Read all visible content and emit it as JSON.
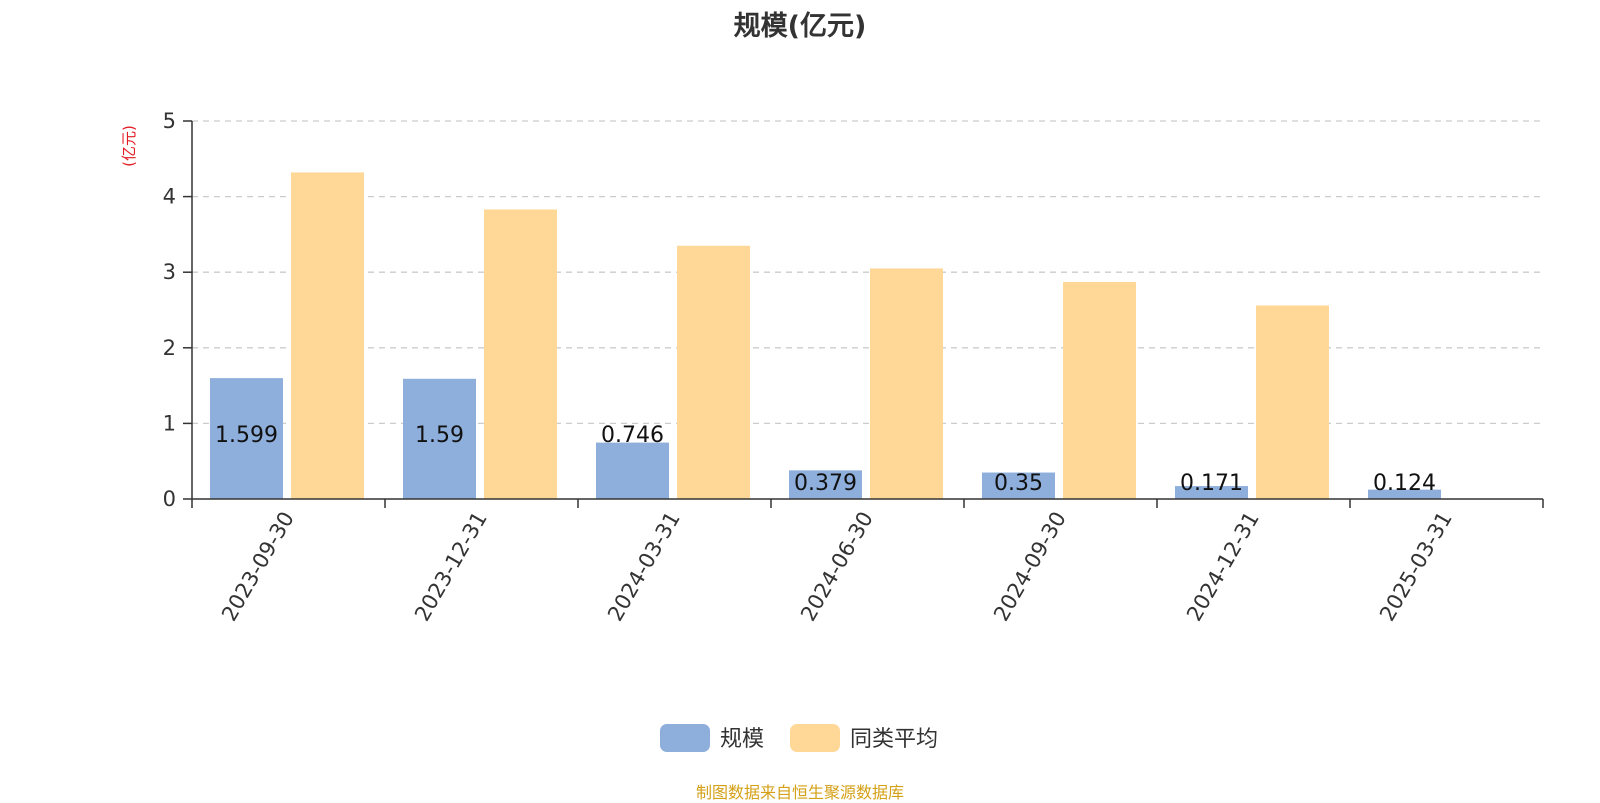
{
  "chart_data": {
    "type": "bar",
    "title": "规模(亿元)",
    "ylabel": "(亿元)",
    "xlabel": "",
    "categories": [
      "2023-09-30",
      "2023-12-31",
      "2024-03-31",
      "2024-06-30",
      "2024-09-30",
      "2024-12-31",
      "2025-03-31"
    ],
    "yticks": [
      0,
      1,
      2,
      3,
      4,
      5
    ],
    "ylim": [
      0,
      5
    ],
    "grid": true,
    "legend_position": "bottom-center",
    "series": [
      {
        "name": "规模",
        "color": "#8eaedb",
        "values": [
          1.599,
          1.59,
          0.746,
          0.379,
          0.35,
          0.171,
          0.124
        ],
        "data_labels": [
          "1.599",
          "1.59",
          "0.746",
          "0.379",
          "0.35",
          "0.171",
          "0.124"
        ]
      },
      {
        "name": "同类平均",
        "color": "#ffd898",
        "values": [
          4.32,
          3.83,
          3.35,
          3.05,
          2.87,
          2.56,
          null
        ]
      }
    ]
  },
  "source_note": "制图数据来自恒生聚源数据库"
}
